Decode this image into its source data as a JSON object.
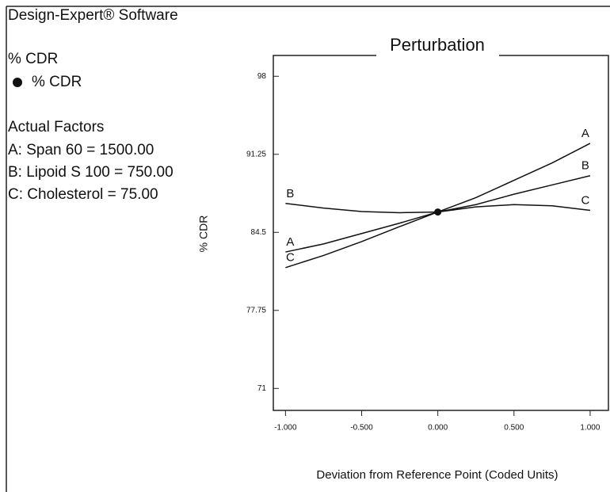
{
  "panel": {
    "software": "Design-Expert® Software",
    "response_title": "% CDR",
    "response_legend": "% CDR",
    "factors_title": "Actual Factors",
    "factors": [
      "A: Span 60 = 1500.00",
      "B: Lipoid S 100 = 750.00",
      "C: Cholesterol = 75.00"
    ]
  },
  "chart_data": {
    "type": "line",
    "title": "Perturbation",
    "x_label": "Deviation from Reference Point (Coded Units)",
    "y_label": "% CDR",
    "x": [
      -1,
      -0.75,
      -0.5,
      -0.25,
      0,
      0.25,
      0.5,
      0.75,
      1
    ],
    "series": [
      {
        "name": "A",
        "color": "#111111",
        "values": [
          82.8,
          83.5,
          84.4,
          85.3,
          86.26,
          87.5,
          89.0,
          90.5,
          92.2
        ]
      },
      {
        "name": "B",
        "color": "#111111",
        "values": [
          87.0,
          86.6,
          86.3,
          86.2,
          86.26,
          86.9,
          87.8,
          88.6,
          89.4
        ]
      },
      {
        "name": "C",
        "color": "#111111",
        "values": [
          81.45,
          82.5,
          83.7,
          85.0,
          86.26,
          86.7,
          86.9,
          86.8,
          86.4
        ]
      }
    ],
    "xlim": [
      -1.08,
      1.12
    ],
    "ylim": [
      69.1,
      99.8
    ],
    "xticks": [
      {
        "value": -1,
        "label": "-1.000"
      },
      {
        "value": -0.5,
        "label": "-0.500"
      },
      {
        "value": 0,
        "label": "0.000"
      },
      {
        "value": 0.5,
        "label": "0.500"
      },
      {
        "value": 1,
        "label": "1.000"
      }
    ],
    "yticks": [
      71,
      77.75,
      84.5,
      91.25,
      98
    ],
    "grid": false
  }
}
